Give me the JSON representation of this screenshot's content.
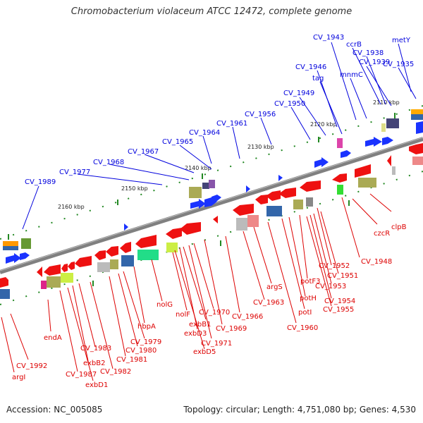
{
  "title": "Chromobacterium violaceum ATCC 12472, complete genome",
  "footer": {
    "accession": "Accession: NC_005085",
    "summary": "Topology: circular; Length: 4,751,080 bp; Genes: 4,530"
  },
  "colors": {
    "forward_label": "#0000dd",
    "reverse_label": "#dd0000",
    "forward_gene": "#1a33ff",
    "reverse_gene": "#ee1111",
    "backbone": "#808080",
    "tick": "#228822"
  },
  "scale_labels": [
    "2110 kbp",
    "2120 kbp",
    "2130 kbp",
    "2140 kbp",
    "2150 kbp",
    "2160 kbp"
  ],
  "forward_genes": [
    "CV_1943",
    "ccrB",
    "metY",
    "CV_1938",
    "CV_1939",
    "CV_1935",
    "mnmC",
    "CV_1946",
    "tag",
    "CV_1949",
    "CV_1950",
    "CV_1956",
    "CV_1961",
    "CV_1964",
    "CV_1965",
    "CV_1967",
    "CV_1968",
    "CV_1977",
    "CV_1989"
  ],
  "reverse_genes": [
    "clpB",
    "czcR",
    "CV_1948",
    "CV_1952",
    "CV_1951",
    "CV_1953",
    "CV_1954",
    "CV_1955",
    "potF3",
    "potH",
    "potI",
    "CV_1960",
    "argS",
    "CV_1963",
    "CV_1966",
    "CV_1969",
    "CV_1970",
    "CV_1971",
    "exbB1",
    "exbD3",
    "exbD5",
    "nolF",
    "nolG",
    "hbpA",
    "CV_1979",
    "CV_1980",
    "CV_1981",
    "CV_1982",
    "CV_1983",
    "exbB2",
    "exbD1",
    "CV_1987",
    "endA",
    "CV_1992",
    "argI"
  ]
}
